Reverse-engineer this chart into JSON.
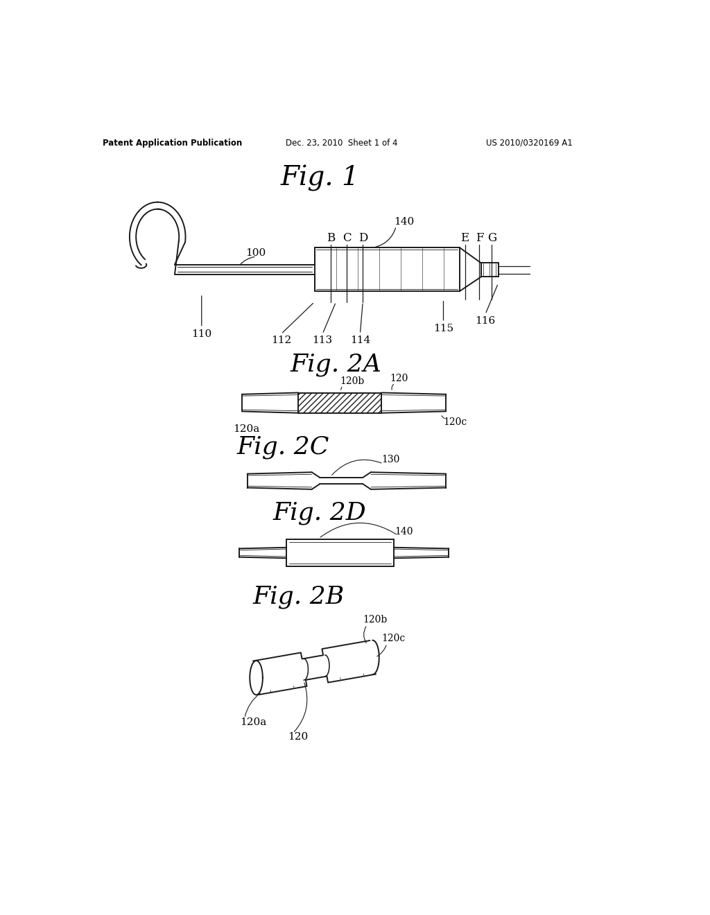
{
  "bg_color": "#ffffff",
  "header_left": "Patent Application Publication",
  "header_center": "Dec. 23, 2010  Sheet 1 of 4",
  "header_right": "US 2010/0320169 A1",
  "fig1_title": "Fig. 1",
  "fig2a_title": "Fig. 2A",
  "fig2c_title": "Fig. 2C",
  "fig2d_title": "Fig. 2D",
  "fig2b_title": "Fig. 2B",
  "line_color": "#1a1a1a"
}
